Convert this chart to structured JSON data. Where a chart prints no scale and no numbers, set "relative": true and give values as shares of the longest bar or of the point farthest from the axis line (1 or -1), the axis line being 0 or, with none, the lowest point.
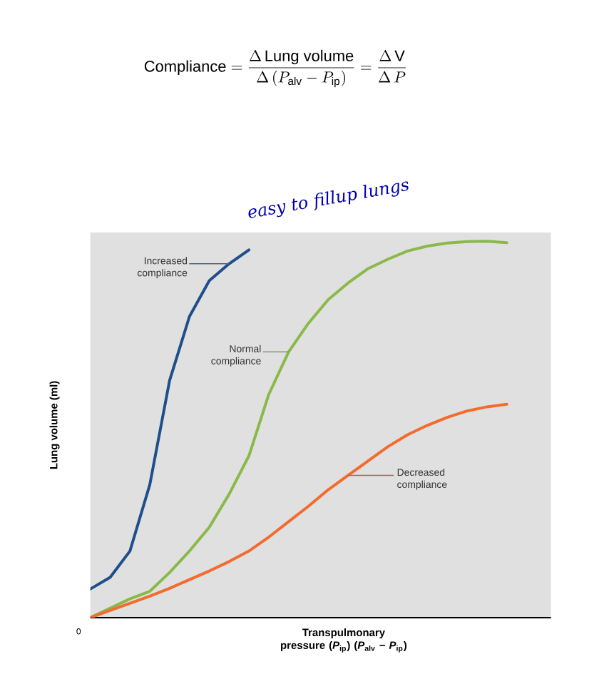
{
  "chart_data": {
    "type": "line",
    "title": "\\mathrm{Compliance} = \\frac{\\Delta\\,\\mathrm{Lung\\ volume}}{\\Delta\\,(P_{\\mathrm{alv}} - P_{\\mathrm{ip}})} = \\frac{\\Delta\\,\\mathrm{V}}{\\Delta\\,P}",
    "xlabel": "Transpulmonary pressure (*P*$_{ip}$) (*P*$_{alv}$ − *P*$_{ip}$)",
    "ylabel": "Lung volume (ml)",
    "relative": true,
    "categories": [
      null,
      null,
      null,
      null,
      null,
      null,
      null,
      null,
      null,
      null,
      null,
      null,
      null,
      null,
      null,
      null,
      null,
      null,
      null,
      null,
      null,
      null
    ],
    "series": [
      {
        "name": "Increased compliance",
        "color": "#1f4e8c",
        "values": [
          0.076,
          0.107,
          0.177,
          0.353,
          0.63,
          0.8,
          0.895,
          0.94,
          0.977,
          null,
          null,
          null,
          null,
          null,
          null,
          null,
          null,
          null,
          null,
          null,
          null,
          null
        ]
      },
      {
        "name": "Normal compliance",
        "color": "#8ab94a",
        "values": [
          0,
          0.025,
          0.05,
          0.07,
          0.12,
          0.177,
          0.24,
          0.328,
          0.43,
          0.593,
          0.706,
          0.782,
          0.845,
          0.889,
          0.927,
          0.952,
          0.974,
          0.987,
          0.995,
          0.999,
          1,
          0.996
        ]
      },
      {
        "name": "Decreased compliance",
        "color": "#f26b2f",
        "values": [
          0,
          0.019,
          0.038,
          0.057,
          0.078,
          0.101,
          0.124,
          0.149,
          0.177,
          0.214,
          0.255,
          0.296,
          0.34,
          0.378,
          0.416,
          0.454,
          0.486,
          0.511,
          0.532,
          0.549,
          0.56,
          0.567
        ]
      }
    ],
    "annotations": [
      "0",
      "easy to fillup lungs"
    ]
  }
}
